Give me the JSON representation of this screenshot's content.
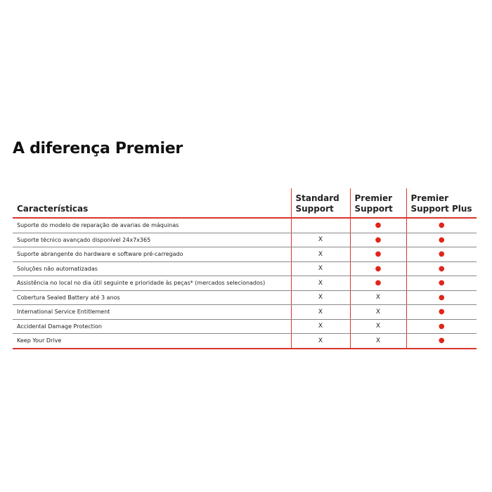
{
  "header": {
    "title": "A diferença Premier"
  },
  "table": {
    "columns": [
      "Características",
      "Standard Support",
      "Premier Support",
      "Premier Support Plus"
    ],
    "rows": [
      [
        "Suporte do modelo de reparação de avarias de máquinas",
        null,
        "●",
        "●"
      ],
      [
        "Suporte técnico avançado disponível 24x7x365",
        "X",
        "●",
        "●"
      ],
      [
        "Suporte abrangente do hardware e software pré-carregado",
        "X",
        "●",
        "●"
      ],
      [
        "Soluções não automatizadas",
        "X",
        "●",
        "●"
      ],
      [
        "Assistência no local no dia útil seguinte e prioridade às peças* (mercados selecionados)",
        "X",
        "●",
        "●"
      ],
      [
        "Cobertura Sealed Battery até 3 anos",
        "X",
        "X",
        "●"
      ],
      [
        "International Service Entitlement",
        "X",
        "X",
        "●"
      ],
      [
        "Accidental Damage Protection",
        "X",
        "X",
        "●"
      ],
      [
        "Keep Your Drive",
        "X",
        "X",
        "●"
      ]
    ]
  }
}
